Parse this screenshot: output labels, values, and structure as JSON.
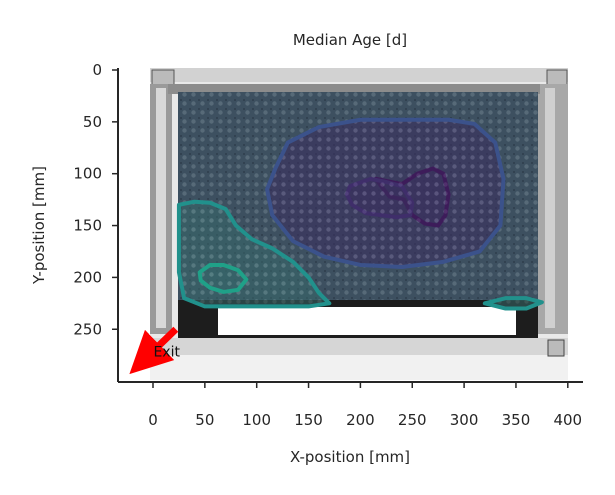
{
  "chart_data": {
    "type": "heatmap",
    "title": "Median Age [d]",
    "xlabel": "X-position [mm]",
    "ylabel": "Y-position [mm]",
    "xlim": [
      -33,
      412
    ],
    "ylim": [
      298,
      0
    ],
    "x_ticks": [
      0,
      50,
      100,
      150,
      200,
      250,
      300,
      350,
      400
    ],
    "y_ticks": [
      0,
      50,
      100,
      150,
      200,
      250
    ],
    "grid": false,
    "background": "photo of honeycomb frame with bees",
    "colormap": "viridis",
    "annotations": [
      {
        "text": "Exit",
        "x": 12,
        "y": 285
      }
    ],
    "arrow": {
      "from": [
        22,
        250
      ],
      "to": [
        -14,
        285
      ],
      "color": "#ff0000"
    },
    "contours": [
      {
        "level": "low",
        "color": "#440154",
        "points": [
          [
            215,
            105
          ],
          [
            240,
            110
          ],
          [
            255,
            100
          ],
          [
            270,
            95
          ],
          [
            280,
            100
          ],
          [
            285,
            120
          ],
          [
            282,
            140
          ],
          [
            275,
            150
          ],
          [
            262,
            148
          ],
          [
            250,
            140
          ],
          [
            242,
            125
          ],
          [
            228,
            122
          ],
          [
            220,
            112
          ]
        ]
      },
      {
        "level": "low",
        "color": "#472d7b",
        "points": [
          [
            190,
            112
          ],
          [
            210,
            105
          ],
          [
            225,
            108
          ],
          [
            240,
            112
          ],
          [
            250,
            128
          ],
          [
            248,
            140
          ],
          [
            235,
            142
          ],
          [
            220,
            140
          ],
          [
            205,
            138
          ],
          [
            192,
            130
          ],
          [
            187,
            120
          ]
        ]
      },
      {
        "level": "mid-low",
        "color": "#3b528b",
        "points": [
          [
            118,
            95
          ],
          [
            130,
            70
          ],
          [
            160,
            55
          ],
          [
            200,
            48
          ],
          [
            240,
            48
          ],
          [
            285,
            48
          ],
          [
            310,
            52
          ],
          [
            330,
            70
          ],
          [
            338,
            105
          ],
          [
            335,
            150
          ],
          [
            315,
            175
          ],
          [
            280,
            185
          ],
          [
            240,
            190
          ],
          [
            200,
            188
          ],
          [
            165,
            180
          ],
          [
            135,
            165
          ],
          [
            115,
            140
          ],
          [
            110,
            115
          ]
        ]
      },
      {
        "level": "mid",
        "color": "#21918c",
        "points": [
          [
            25,
            130
          ],
          [
            40,
            127
          ],
          [
            55,
            128
          ],
          [
            70,
            134
          ],
          [
            80,
            150
          ],
          [
            95,
            163
          ],
          [
            115,
            172
          ],
          [
            135,
            185
          ],
          [
            150,
            200
          ],
          [
            160,
            215
          ],
          [
            170,
            225
          ],
          [
            150,
            228
          ],
          [
            110,
            228
          ],
          [
            75,
            228
          ],
          [
            50,
            228
          ],
          [
            30,
            220
          ],
          [
            25,
            195
          ],
          [
            25,
            165
          ]
        ]
      },
      {
        "level": "mid",
        "color": "#21918c",
        "points": [
          [
            320,
            225
          ],
          [
            340,
            220
          ],
          [
            360,
            220
          ],
          [
            375,
            224
          ],
          [
            360,
            230
          ],
          [
            340,
            230
          ]
        ]
      },
      {
        "level": "high",
        "color": "#1fa188",
        "points": [
          [
            45,
            195
          ],
          [
            55,
            188
          ],
          [
            68,
            188
          ],
          [
            82,
            193
          ],
          [
            90,
            202
          ],
          [
            82,
            212
          ],
          [
            68,
            214
          ],
          [
            55,
            210
          ],
          [
            46,
            203
          ]
        ]
      }
    ]
  }
}
